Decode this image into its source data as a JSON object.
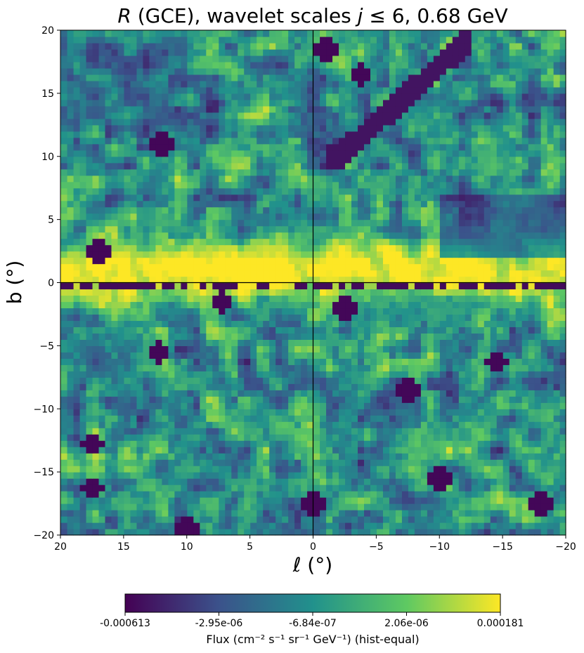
{
  "chart_data": {
    "type": "heatmap",
    "title_main": "R",
    "title_rest": " (GCE), wavelet scales ",
    "title_j": "j",
    "title_tail": " ≤ 6, 0.68 GeV",
    "xlabel": "ℓ (°)",
    "ylabel": "b (°)",
    "xlim": [
      20,
      -20
    ],
    "ylim": [
      -20,
      20
    ],
    "x_ticks": [
      20,
      15,
      10,
      5,
      0,
      -5,
      -10,
      -15,
      -20
    ],
    "y_ticks": [
      20,
      15,
      10,
      5,
      0,
      -5,
      -10,
      -15,
      -20
    ],
    "x_tick_labels": [
      "20",
      "15",
      "10",
      "5",
      "0",
      "−5",
      "−10",
      "−15",
      "−20"
    ],
    "y_tick_labels": [
      "20",
      "15",
      "10",
      "5",
      "0",
      "−5",
      "−10",
      "−15",
      "−20"
    ],
    "crosshair": {
      "l": 0,
      "b": 0
    },
    "colormap": "viridis",
    "colors": [
      "#440154",
      "#3b528b",
      "#21918c",
      "#5ec962",
      "#fde725"
    ],
    "colorbar": {
      "tick_labels": [
        "-0.000613",
        "-2.95e-06",
        "-6.84e-07",
        "2.06e-06",
        "0.000181"
      ],
      "label": "Flux (cm⁻² s⁻¹ sr⁻¹ GeV⁻¹) (hist-equal)"
    },
    "features": [
      {
        "name": "plane-bright-band",
        "b_range": [
          -3,
          4
        ],
        "level": 0.95
      },
      {
        "name": "negative-ridge-at-b0",
        "b": -0.2,
        "level": 0.0
      },
      {
        "name": "upper-right-dark-arm",
        "l": [
          -2,
          -12
        ],
        "b": [
          10,
          19
        ],
        "level": 0.05
      },
      {
        "name": "right-edge-dark-region",
        "l": [
          -10,
          -20
        ],
        "b": [
          2,
          7
        ],
        "level": 0.15
      }
    ]
  }
}
